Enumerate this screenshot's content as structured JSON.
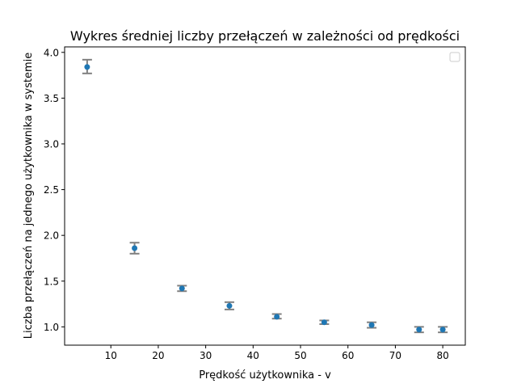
{
  "chart_data": {
    "type": "scatter",
    "title": "Wykres średniej liczby przełączeń w zależności od prędkości",
    "xlabel": "Prędkość użytkownika - v",
    "ylabel": "Liczba przełączeń na jednego użytkownika w systemie",
    "xlim": [
      0.25,
      84.75
    ],
    "ylim": [
      0.8,
      4.06
    ],
    "xticks": [
      10,
      20,
      30,
      40,
      50,
      60,
      70,
      80
    ],
    "yticks": [
      1.0,
      1.5,
      2.0,
      2.5,
      3.0,
      3.5,
      4.0
    ],
    "xtick_labels": [
      "10",
      "20",
      "30",
      "40",
      "50",
      "60",
      "70",
      "80"
    ],
    "ytick_labels": [
      "1.0",
      "1.5",
      "2.0",
      "2.5",
      "3.0",
      "3.5",
      "4.0"
    ],
    "grid": false,
    "legend": {
      "placement": "top-right",
      "entries": []
    },
    "series": [
      {
        "x": [
          5,
          15,
          25,
          35,
          45,
          55,
          65,
          75,
          80
        ],
        "y": [
          3.84,
          1.86,
          1.42,
          1.23,
          1.11,
          1.05,
          1.02,
          0.97,
          0.97
        ],
        "err_low": [
          3.77,
          1.8,
          1.39,
          1.19,
          1.09,
          1.03,
          0.99,
          0.94,
          0.94
        ],
        "err_high": [
          3.92,
          1.92,
          1.45,
          1.27,
          1.14,
          1.07,
          1.05,
          1.0,
          1.0
        ]
      }
    ],
    "colors": {
      "marker": "#1f77b4",
      "errorbar": "#808080"
    }
  }
}
